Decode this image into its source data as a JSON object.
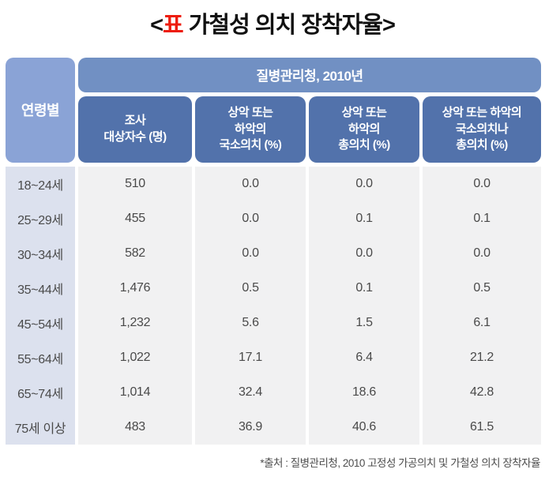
{
  "title": {
    "open": "<",
    "red": "표",
    "rest": " 가철성 의치 장착자율",
    "close": ">"
  },
  "header": {
    "age_label": "연령별",
    "group_label": "질병관리청, 2010년",
    "columns": [
      "조사\n대상자수 (명)",
      "상악 또는\n하악의\n국소의치 (%)",
      "상악 또는\n하악의\n총의치 (%)",
      "상악 또는 하악의\n국소의치나\n총의치 (%)"
    ]
  },
  "table": {
    "rows": [
      {
        "age": "18~24세",
        "values": [
          "510",
          "0.0",
          "0.0",
          "0.0"
        ]
      },
      {
        "age": "25~29세",
        "values": [
          "455",
          "0.0",
          "0.1",
          "0.1"
        ]
      },
      {
        "age": "30~34세",
        "values": [
          "582",
          "0.0",
          "0.0",
          "0.0"
        ]
      },
      {
        "age": "35~44세",
        "values": [
          "1,476",
          "0.5",
          "0.1",
          "0.5"
        ]
      },
      {
        "age": "45~54세",
        "values": [
          "1,232",
          "5.6",
          "1.5",
          "6.1"
        ]
      },
      {
        "age": "55~64세",
        "values": [
          "1,022",
          "17.1",
          "6.4",
          "21.2"
        ]
      },
      {
        "age": "65~74세",
        "values": [
          "1,014",
          "32.4",
          "18.6",
          "42.8"
        ]
      },
      {
        "age": "75세 이상",
        "values": [
          "483",
          "36.9",
          "40.6",
          "61.5"
        ]
      }
    ]
  },
  "footer": {
    "source_note": "*출처 : 질병관리청, 2010 고정성 가공의치 및 가철성 의치 장착자율"
  },
  "colors": {
    "title_red": "#ed1c0c",
    "age_header": "#8aa3d6",
    "group_header": "#7190c3",
    "sub_header": "#5272ab",
    "age_body": "#dce1ee",
    "data_body": "#f1f1f2",
    "body_text": "#4a4a4a",
    "footer_text": "#4d4d4d"
  },
  "chart_data": {
    "type": "table",
    "title": "<표 가철성 의치 장착자율>",
    "group_header": "질병관리청, 2010년",
    "columns": [
      "연령별",
      "조사 대상자수 (명)",
      "상악 또는 하악의 국소의치 (%)",
      "상악 또는 하악의 총의치 (%)",
      "상악 또는 하악의 국소의치나 총의치 (%)"
    ],
    "rows": [
      [
        "18~24세",
        510,
        0.0,
        0.0,
        0.0
      ],
      [
        "25~29세",
        455,
        0.0,
        0.1,
        0.1
      ],
      [
        "30~34세",
        582,
        0.0,
        0.0,
        0.0
      ],
      [
        "35~44세",
        1476,
        0.5,
        0.1,
        0.5
      ],
      [
        "45~54세",
        1232,
        5.6,
        1.5,
        6.1
      ],
      [
        "55~64세",
        1022,
        17.1,
        6.4,
        21.2
      ],
      [
        "65~74세",
        1014,
        32.4,
        18.6,
        42.8
      ],
      [
        "75세 이상",
        483,
        36.9,
        40.6,
        61.5
      ]
    ],
    "source": "*출처 : 질병관리청, 2010 고정성 가공의치 및 가철성 의치 장착자율"
  }
}
